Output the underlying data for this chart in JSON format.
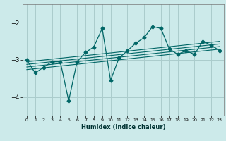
{
  "xlabel": "Humidex (Indice chaleur)",
  "bg_color": "#cceaea",
  "grid_color": "#aacccc",
  "line_color": "#006666",
  "xlim": [
    -0.5,
    23.5
  ],
  "ylim": [
    -4.5,
    -1.5
  ],
  "yticks": [
    -4,
    -3,
    -2
  ],
  "xticks": [
    0,
    1,
    2,
    3,
    4,
    5,
    6,
    7,
    8,
    9,
    10,
    11,
    12,
    13,
    14,
    15,
    16,
    17,
    18,
    19,
    20,
    21,
    22,
    23
  ],
  "series1_x": [
    0,
    1,
    2,
    3,
    4,
    5,
    6,
    7,
    8,
    9,
    10,
    11,
    12,
    13,
    14,
    15,
    16,
    17,
    18,
    19,
    20,
    21,
    22,
    23
  ],
  "series1_y": [
    -3.0,
    -3.35,
    -3.2,
    -3.05,
    -3.05,
    -4.1,
    -3.05,
    -2.8,
    -2.65,
    -2.15,
    -3.55,
    -2.95,
    -2.75,
    -2.55,
    -2.4,
    -2.1,
    -2.15,
    -2.7,
    -2.85,
    -2.75,
    -2.85,
    -2.5,
    -2.6,
    -2.75
  ],
  "trend_lines": [
    {
      "x": [
        0,
        23
      ],
      "y": [
        -3.05,
        -2.5
      ]
    },
    {
      "x": [
        0,
        23
      ],
      "y": [
        -3.12,
        -2.57
      ]
    },
    {
      "x": [
        0,
        23
      ],
      "y": [
        -3.19,
        -2.64
      ]
    },
    {
      "x": [
        0,
        23
      ],
      "y": [
        -3.26,
        -2.71
      ]
    }
  ]
}
